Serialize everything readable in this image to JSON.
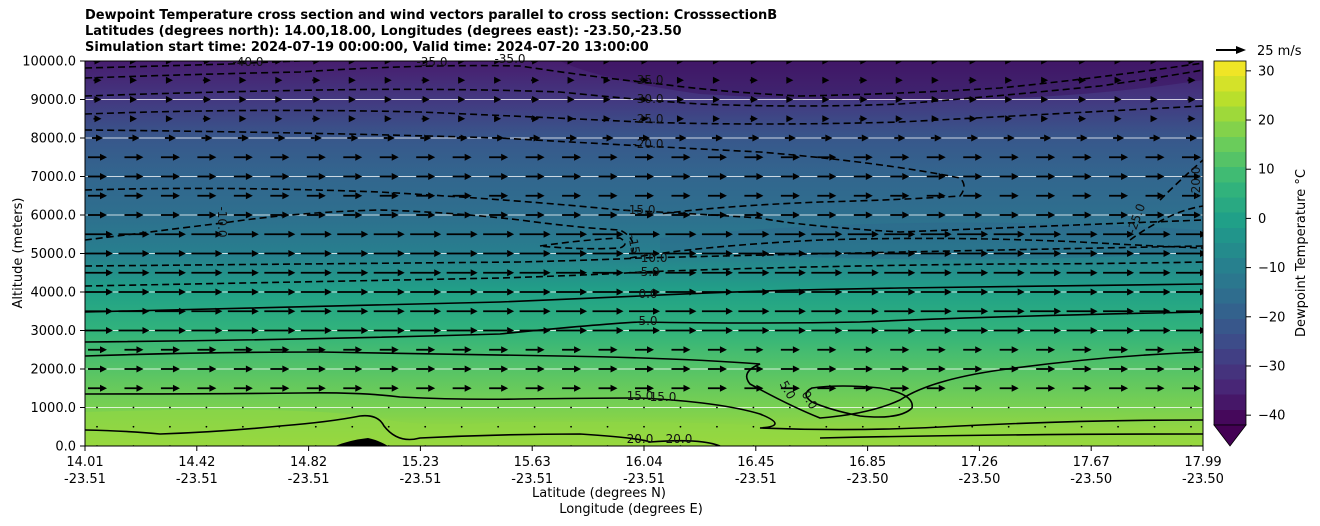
{
  "title_lines": [
    "Dewpoint Temperature cross section and wind vectors parallel to cross section: CrosssectionB",
    "Latitudes (degrees north): 14.00,18.00, Longitudes (degrees east): -23.50,-23.50",
    "Simulation start time: 2024-07-19 00:00:00, Valid time: 2024-07-20 13:00:00"
  ],
  "chart_data": {
    "type": "heatmap",
    "ylabel": "Altitude (meters)",
    "xlabel_lines": [
      "Latitude (degrees N)",
      "Longitude (degrees E)"
    ],
    "ylim": [
      0,
      10000
    ],
    "y_ticks": [
      "0.0",
      "1000.0",
      "2000.0",
      "3000.0",
      "4000.0",
      "5000.0",
      "6000.0",
      "7000.0",
      "8000.0",
      "9000.0",
      "10000.0"
    ],
    "x_ticks": [
      {
        "lat": "14.01",
        "lon": "-23.51"
      },
      {
        "lat": "14.42",
        "lon": "-23.51"
      },
      {
        "lat": "14.82",
        "lon": "-23.51"
      },
      {
        "lat": "15.23",
        "lon": "-23.51"
      },
      {
        "lat": "15.63",
        "lon": "-23.51"
      },
      {
        "lat": "16.04",
        "lon": "-23.51"
      },
      {
        "lat": "16.45",
        "lon": "-23.51"
      },
      {
        "lat": "16.85",
        "lon": "-23.50"
      },
      {
        "lat": "17.26",
        "lon": "-23.50"
      },
      {
        "lat": "17.67",
        "lon": "-23.50"
      },
      {
        "lat": "17.99",
        "lon": "-23.50"
      }
    ],
    "colorbar": {
      "label": "Dewpoint Temperature °C",
      "ticks": [
        "30",
        "20",
        "10",
        "0",
        "−10",
        "−20",
        "−30",
        "−40"
      ],
      "tick_values": [
        30,
        20,
        10,
        0,
        -10,
        -20,
        -30,
        -40
      ],
      "range": [
        -42,
        32
      ]
    },
    "dewpoint_profile": [
      {
        "alt": 0,
        "value": 22
      },
      {
        "alt": 1000,
        "value": 17
      },
      {
        "alt": 2000,
        "value": 12
      },
      {
        "alt": 3000,
        "value": 6
      },
      {
        "alt": 4000,
        "value": 0
      },
      {
        "alt": 5000,
        "value": -10
      },
      {
        "alt": 6000,
        "value": -15
      },
      {
        "alt": 7000,
        "value": -18
      },
      {
        "alt": 8000,
        "value": -22
      },
      {
        "alt": 9000,
        "value": -30
      },
      {
        "alt": 10000,
        "value": -36
      }
    ],
    "contour_labels": [
      "-40.0",
      "-35.0",
      "-35.0",
      "-35.0",
      "-30.0",
      "-25.0",
      "-20.0",
      "-15.0",
      "-10.0",
      "-5.0",
      "0.0",
      "5.0",
      "15.0",
      "15.0",
      "20.0",
      "20.0",
      "-20.0",
      "-25.0",
      "-10.0",
      "-15",
      "5.0",
      "0.0"
    ],
    "wind_key": {
      "label": "25 m/s"
    },
    "grid": true
  },
  "colors": {
    "contour": "#000000",
    "grid": "#ffffff"
  }
}
